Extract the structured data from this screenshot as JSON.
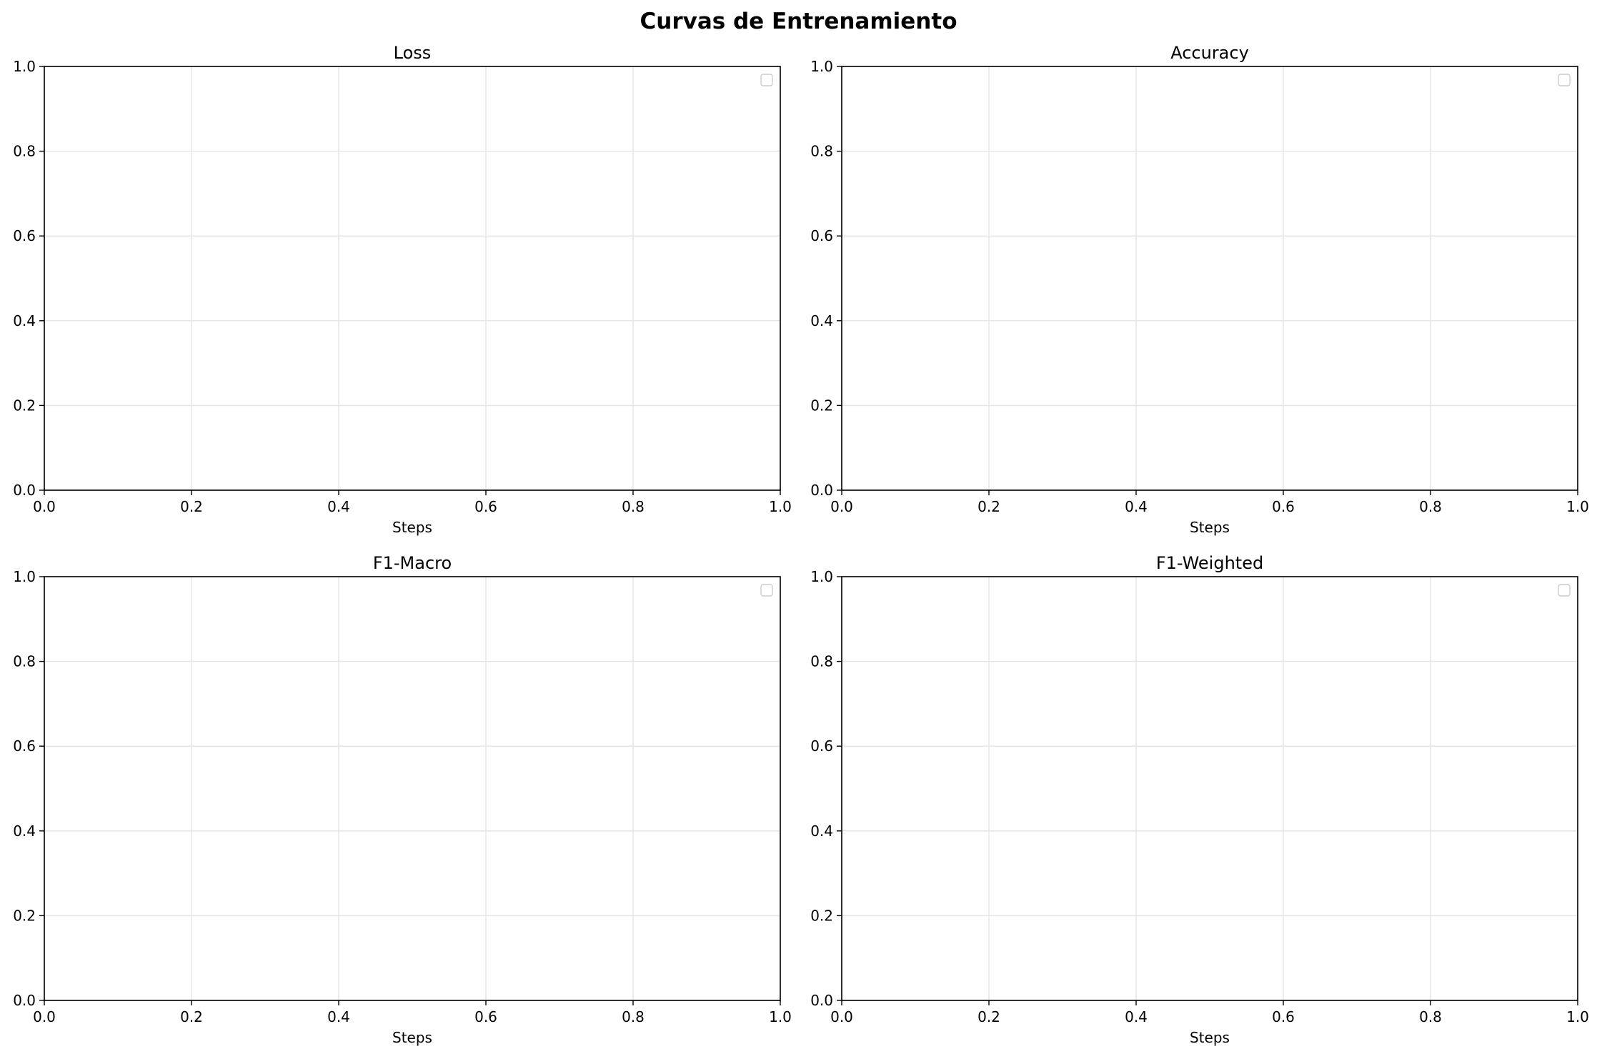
{
  "figure": {
    "title": "Curvas de Entrenamiento"
  },
  "chart_data": [
    {
      "type": "line",
      "title": "Loss",
      "xlabel": "Steps",
      "ylabel": "",
      "xlim": [
        0,
        1
      ],
      "ylim": [
        0,
        1
      ],
      "x_ticks": [
        "0.0",
        "0.2",
        "0.4",
        "0.6",
        "0.8",
        "1.0"
      ],
      "y_ticks": [
        "0.0",
        "0.2",
        "0.4",
        "0.6",
        "0.8",
        "1.0"
      ],
      "grid": true,
      "legend": "top-right",
      "legend_entries": [],
      "series": []
    },
    {
      "type": "line",
      "title": "Accuracy",
      "xlabel": "Steps",
      "ylabel": "",
      "xlim": [
        0,
        1
      ],
      "ylim": [
        0,
        1
      ],
      "x_ticks": [
        "0.0",
        "0.2",
        "0.4",
        "0.6",
        "0.8",
        "1.0"
      ],
      "y_ticks": [
        "0.0",
        "0.2",
        "0.4",
        "0.6",
        "0.8",
        "1.0"
      ],
      "grid": true,
      "legend": "top-right",
      "legend_entries": [],
      "series": []
    },
    {
      "type": "line",
      "title": "F1-Macro",
      "xlabel": "Steps",
      "ylabel": "",
      "xlim": [
        0,
        1
      ],
      "ylim": [
        0,
        1
      ],
      "x_ticks": [
        "0.0",
        "0.2",
        "0.4",
        "0.6",
        "0.8",
        "1.0"
      ],
      "y_ticks": [
        "0.0",
        "0.2",
        "0.4",
        "0.6",
        "0.8",
        "1.0"
      ],
      "grid": true,
      "legend": "top-right",
      "legend_entries": [],
      "series": []
    },
    {
      "type": "line",
      "title": "F1-Weighted",
      "xlabel": "Steps",
      "ylabel": "",
      "xlim": [
        0,
        1
      ],
      "ylim": [
        0,
        1
      ],
      "x_ticks": [
        "0.0",
        "0.2",
        "0.4",
        "0.6",
        "0.8",
        "1.0"
      ],
      "y_ticks": [
        "0.0",
        "0.2",
        "0.4",
        "0.6",
        "0.8",
        "1.0"
      ],
      "grid": true,
      "legend": "top-right",
      "legend_entries": [],
      "series": []
    }
  ],
  "colors": {
    "grid": "#e6e6e6",
    "axis": "#000000",
    "legend_border": "#cccccc"
  }
}
